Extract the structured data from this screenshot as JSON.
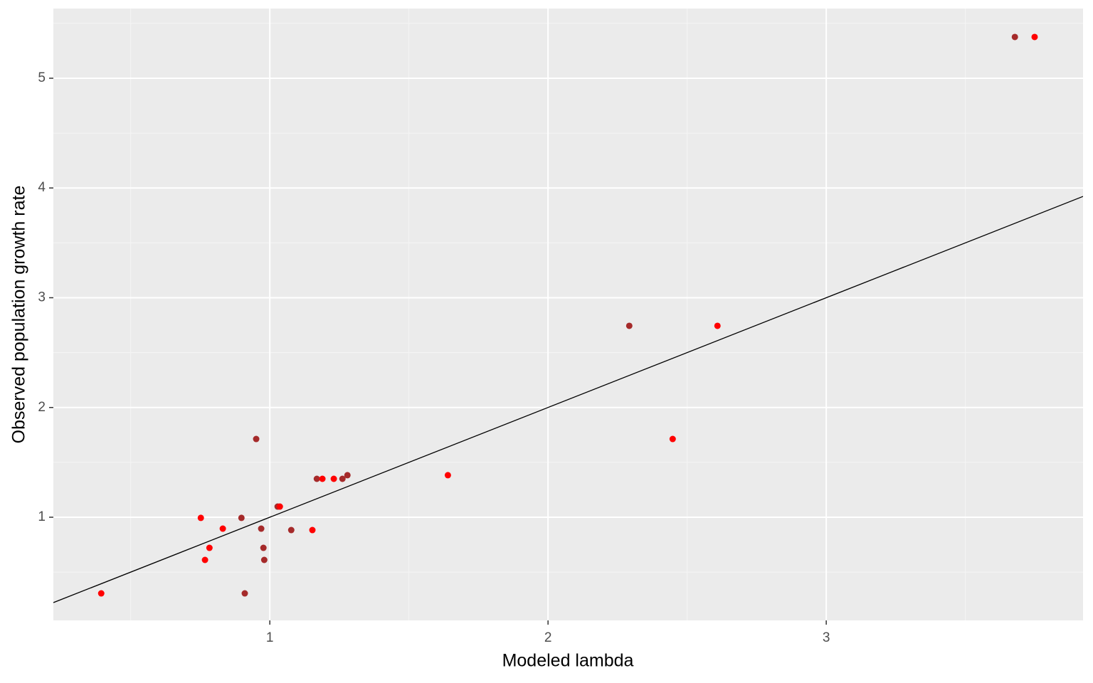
{
  "chart_data": {
    "type": "scatter",
    "x_label": "Modeled lambda",
    "y_label": "Observed population growth rate",
    "xlim": [
      0.222,
      3.923
    ],
    "ylim": [
      0.06,
      5.635
    ],
    "xticks": [
      1,
      2,
      3
    ],
    "yticks": [
      1,
      2,
      3,
      4,
      5
    ],
    "grid": true,
    "abline": {
      "intercept": 0,
      "slope": 1,
      "color": "#000000"
    },
    "series": [
      {
        "color": "#a52a2a",
        "x": [
          3.678,
          2.292,
          0.951,
          1.169,
          1.261,
          1.279,
          0.898,
          0.969,
          1.077,
          0.977,
          0.98,
          0.91,
          1.028
        ],
        "values": [
          5.376,
          2.744,
          1.713,
          1.35,
          1.35,
          1.383,
          0.994,
          0.896,
          0.883,
          0.721,
          0.611,
          0.306,
          1.097
        ]
      },
      {
        "color": "#ff0000",
        "x": [
          3.749,
          2.609,
          2.448,
          1.64,
          1.189,
          1.23,
          1.036,
          0.752,
          0.831,
          1.153,
          0.783,
          0.767,
          0.394
        ],
        "values": [
          5.376,
          2.744,
          1.713,
          1.383,
          1.35,
          1.35,
          1.097,
          0.994,
          0.896,
          0.883,
          0.721,
          0.611,
          0.306
        ]
      }
    ]
  }
}
